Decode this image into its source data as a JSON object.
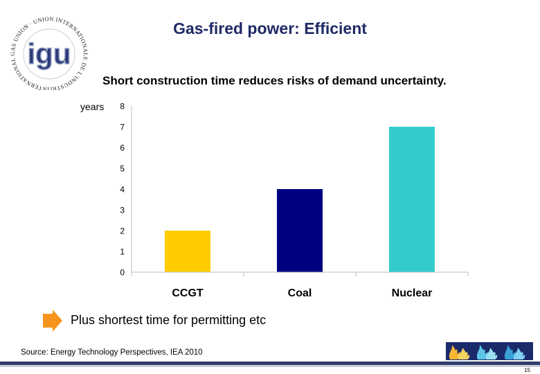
{
  "slide": {
    "title": "Gas-fired power: Efficient",
    "subtitle": "Short construction time reduces risks of demand uncertainty.",
    "bullet_text": "Plus shortest time for permitting etc",
    "source": "Source: Energy Technology Perspectives, IEA 2010",
    "page_number": "15"
  },
  "logo": {
    "ring_text": "INTERNATIONAL GAS UNION · UNION INTERNATIONALE DE L'INDUSTRIE DU GAZ",
    "letters": "igu"
  },
  "chart_data": {
    "type": "bar",
    "title": "",
    "ylabel": "years",
    "xlabel": "",
    "categories": [
      "CCGT",
      "Coal",
      "Nuclear"
    ],
    "values": [
      2,
      4,
      7
    ],
    "colors": [
      "#ffcc00",
      "#000080",
      "#33cccc"
    ],
    "ylim": [
      0,
      8
    ],
    "yticks": [
      "0",
      "1",
      "2",
      "3",
      "4",
      "5",
      "6",
      "7",
      "8"
    ],
    "grid": false,
    "legend": "none"
  },
  "colors": {
    "title": "#1f2a66",
    "bullet_arrow": "#f7941d",
    "bottom_bar": "#2f3b6b"
  },
  "icons": {
    "bullet": "arrow-right-icon",
    "banner": "gas-flame-banner"
  }
}
